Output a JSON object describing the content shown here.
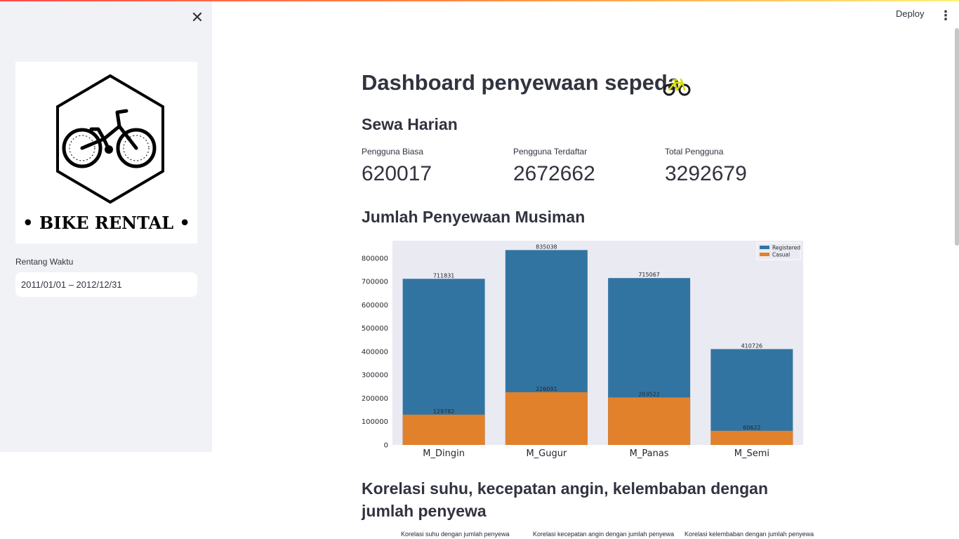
{
  "sidebar": {
    "close_icon": "close-icon",
    "logo_text": "• BIKE RENTAL •",
    "date_label": "Rentang Waktu",
    "date_value": "2011/01/01 – 2012/12/31"
  },
  "header": {
    "deploy_label": "Deploy",
    "menu_icon": "vertical-dots-icon"
  },
  "main": {
    "title": "Dashboard penyewaan sepeda",
    "title_emoji": "bicycle-icon",
    "daily_heading": "Sewa Harian",
    "metrics": [
      {
        "label": "Pengguna Biasa",
        "value": "620017"
      },
      {
        "label": "Pengguna Terdaftar",
        "value": "2672662"
      },
      {
        "label": "Total Pengguna",
        "value": "3292679"
      }
    ],
    "seasonal_heading": "Jumlah Penyewaan Musiman",
    "correlation_heading": "Korelasi suhu, kecepatan angin, kelembaban dengan jumlah penyewa",
    "correlation_captions": [
      "Korelasi suhu dengan jumlah penyewa",
      "Korelasi kecepatan angin dengan jumlah penyewa",
      "Korelasi kelembaban dengan jumlah penyewa"
    ]
  },
  "colors": {
    "registered": "#3274a1",
    "casual": "#e1812c",
    "plot_bg": "#eaeaf2",
    "sidebar_bg": "#f0f2f6",
    "text": "#31333f"
  },
  "chart_data": {
    "type": "bar",
    "stacked": false,
    "categories": [
      "M_Dingin",
      "M_Gugur",
      "M_Panas",
      "M_Semi"
    ],
    "series": [
      {
        "name": "Registered",
        "values": [
          711831,
          835038,
          715067,
          410726
        ],
        "labels": [
          "711831",
          "835038",
          "715067",
          "410726"
        ]
      },
      {
        "name": "Casual",
        "values": [
          129782,
          226091,
          203522,
          60622
        ],
        "labels": [
          "129782",
          "226091",
          "203522",
          "60622"
        ]
      }
    ],
    "ylim": [
      0,
      875000
    ],
    "yticks": [
      0,
      100000,
      200000,
      300000,
      400000,
      500000,
      600000,
      700000,
      800000
    ],
    "ytick_labels": [
      "0",
      "100000",
      "200000",
      "300000",
      "400000",
      "500000",
      "600000",
      "700000",
      "800000"
    ],
    "grid": true,
    "legend": "top-right",
    "title": "",
    "xlabel": "",
    "ylabel": ""
  }
}
